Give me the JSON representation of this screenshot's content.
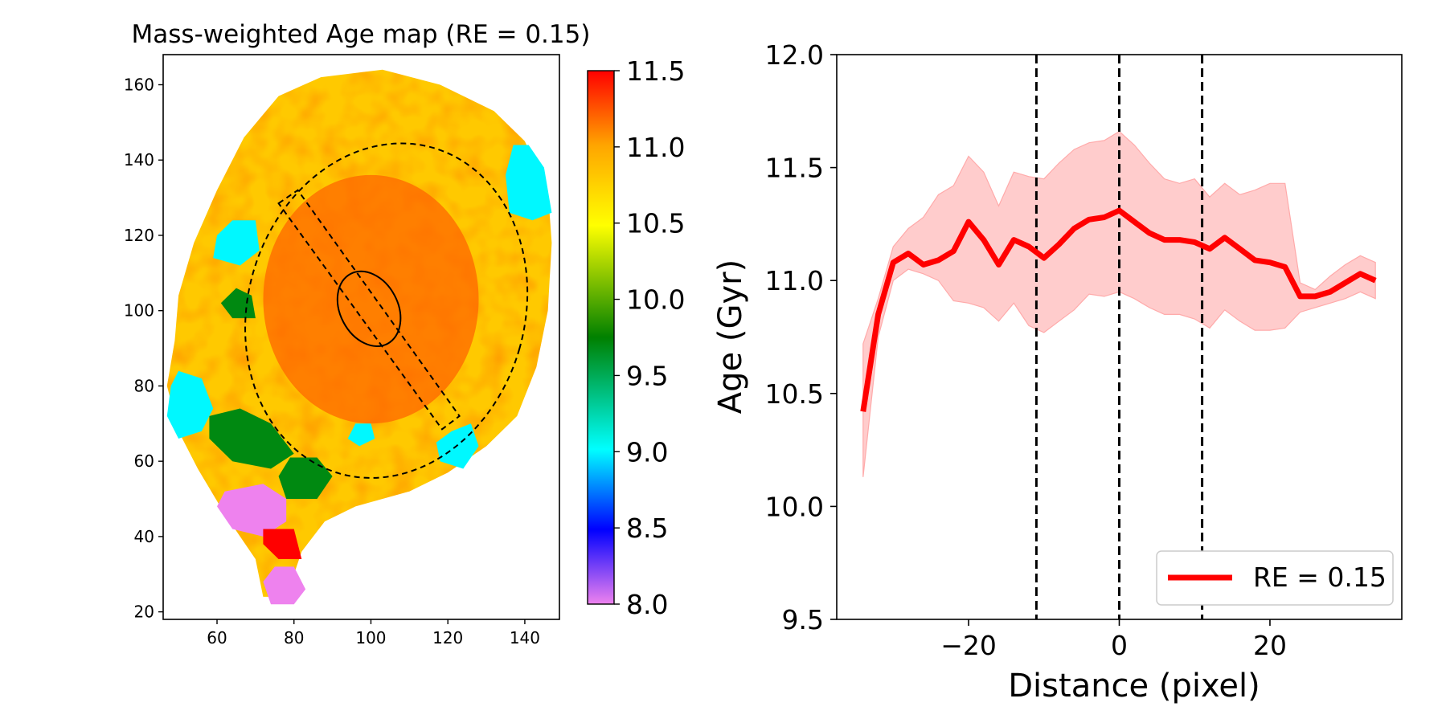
{
  "chart_data": [
    {
      "type": "heatmap",
      "title": "Mass-weighted Age map (RE = 0.15)",
      "xlabel": "",
      "ylabel": "",
      "xlim": [
        46,
        149
      ],
      "ylim": [
        18,
        168
      ],
      "x_ticks": [
        "60",
        "80",
        "100",
        "120",
        "140"
      ],
      "y_ticks": [
        "20",
        "40",
        "60",
        "80",
        "100",
        "120",
        "140",
        "160"
      ],
      "colorbar": {
        "range": [
          8.0,
          11.5
        ],
        "ticks": [
          "8.0",
          "8.5",
          "9.0",
          "9.5",
          "10.0",
          "10.5",
          "11.0",
          "11.5"
        ],
        "colors": [
          "#ee82ee",
          "#0000ff",
          "#00ffff",
          "#008000",
          "#ffff00",
          "#ffa500",
          "#ff0000"
        ]
      },
      "typical_values": {
        "outer_disk": 10.8,
        "inner_region": 11.2,
        "blue_patches": 9.0,
        "green_patches": 9.7,
        "violet_tail": 8.0
      },
      "overlays": {
        "outer_ellipse": {
          "center": [
            104,
            100
          ],
          "semi_axes": [
            36,
            45
          ],
          "style": "dashed"
        },
        "inner_ellipse": {
          "center": [
            99.5,
            100.5
          ],
          "semi_axes": [
            7.5,
            10.5
          ],
          "style": "solid"
        },
        "slit_corners": [
          [
            76,
            128.5
          ],
          [
            81,
            132
          ],
          [
            123,
            72
          ],
          [
            118.5,
            68.5
          ]
        ]
      }
    },
    {
      "type": "line",
      "title": "",
      "xlabel": "Distance (pixel)",
      "ylabel": "Age (Gyr)",
      "xlim": [
        -37.5,
        37.5
      ],
      "ylim": [
        9.5,
        12.0
      ],
      "x_ticks": [
        "−20",
        "0",
        "20"
      ],
      "y_ticks": [
        "9.5",
        "10.0",
        "10.5",
        "11.0",
        "11.5",
        "12.0"
      ],
      "vlines": [
        -11,
        0,
        11
      ],
      "legend": {
        "position": "lower-right"
      },
      "series": [
        {
          "name": "RE = 0.15",
          "color": "#ff0000",
          "x": [
            -34,
            -32,
            -30,
            -28,
            -26,
            -24,
            -22,
            -20,
            -18,
            -16,
            -14,
            -12,
            -10,
            -8,
            -6,
            -4,
            -2,
            0,
            2,
            4,
            6,
            8,
            10,
            12,
            14,
            16,
            18,
            20,
            22,
            24,
            26,
            28,
            30,
            32,
            34
          ],
          "y": [
            10.42,
            10.85,
            11.08,
            11.12,
            11.07,
            11.09,
            11.13,
            11.26,
            11.18,
            11.07,
            11.18,
            11.15,
            11.1,
            11.16,
            11.23,
            11.27,
            11.28,
            11.31,
            11.26,
            11.21,
            11.18,
            11.18,
            11.17,
            11.14,
            11.19,
            11.14,
            11.09,
            11.08,
            11.06,
            10.93,
            10.93,
            10.95,
            10.99,
            11.03,
            11.0
          ],
          "upper": [
            10.72,
            10.92,
            11.15,
            11.23,
            11.28,
            11.38,
            11.42,
            11.55,
            11.48,
            11.33,
            11.48,
            11.46,
            11.45,
            11.52,
            11.58,
            11.61,
            11.62,
            11.66,
            11.6,
            11.52,
            11.45,
            11.43,
            11.45,
            11.37,
            11.43,
            11.38,
            11.4,
            11.43,
            11.43,
            10.99,
            10.96,
            11.02,
            11.07,
            11.11,
            11.08
          ],
          "lower": [
            10.13,
            10.75,
            11.0,
            11.05,
            11.03,
            11.0,
            10.91,
            10.9,
            10.88,
            10.82,
            10.9,
            10.8,
            10.77,
            10.82,
            10.87,
            10.94,
            10.93,
            10.95,
            10.92,
            10.88,
            10.85,
            10.85,
            10.83,
            10.79,
            10.87,
            10.82,
            10.78,
            10.78,
            10.79,
            10.86,
            10.88,
            10.9,
            10.92,
            10.95,
            10.92
          ],
          "band_color": "#ffcccc"
        }
      ]
    }
  ]
}
